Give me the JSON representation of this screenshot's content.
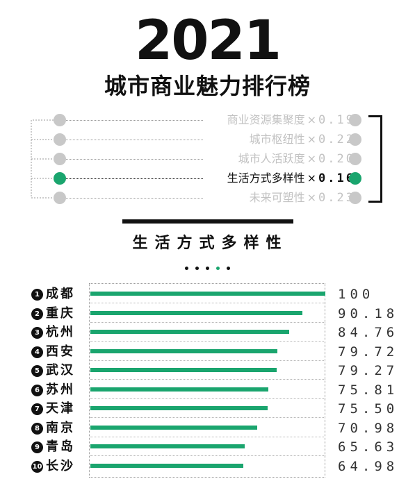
{
  "header": {
    "year": "2021",
    "title": "城市商业魅力排行榜"
  },
  "factors": [
    {
      "label": "商业资源集聚度",
      "times": "×",
      "weight": "0.19",
      "active": false
    },
    {
      "label": "城市枢纽性",
      "times": "×",
      "weight": "0.22",
      "active": false
    },
    {
      "label": "城市人活跃度",
      "times": "×",
      "weight": "0.20",
      "active": false
    },
    {
      "label": "生活方式多样性",
      "times": "×",
      "weight": "0.16",
      "active": true
    },
    {
      "label": "未来可塑性",
      "times": "×",
      "weight": "0.23",
      "active": false
    }
  ],
  "section": {
    "subtitle": "生活方式多样性",
    "pager": {
      "count": 5,
      "active_index": 3
    }
  },
  "colors": {
    "accent": "#1aa56e",
    "inactive_dot": "#c8c8c8",
    "inactive_text": "#c2c2c2",
    "text": "#111111"
  },
  "chart_data": {
    "type": "bar",
    "orientation": "horizontal",
    "title": "生活方式多样性",
    "categories": [
      "成都",
      "重庆",
      "杭州",
      "西安",
      "武汉",
      "苏州",
      "天津",
      "南京",
      "青岛",
      "长沙"
    ],
    "ranks": [
      "1",
      "2",
      "3",
      "4",
      "5",
      "6",
      "7",
      "8",
      "9",
      "10"
    ],
    "values": [
      100,
      90.18,
      84.76,
      79.72,
      79.27,
      75.81,
      75.5,
      70.98,
      65.63,
      64.98
    ],
    "value_labels": [
      "100",
      "90.18",
      "84.76",
      "79.72",
      "79.27",
      "75.81",
      "75.50",
      "70.98",
      "65.63",
      "64.98"
    ],
    "xlim": [
      0,
      100
    ],
    "grid": false,
    "legend": "none"
  }
}
